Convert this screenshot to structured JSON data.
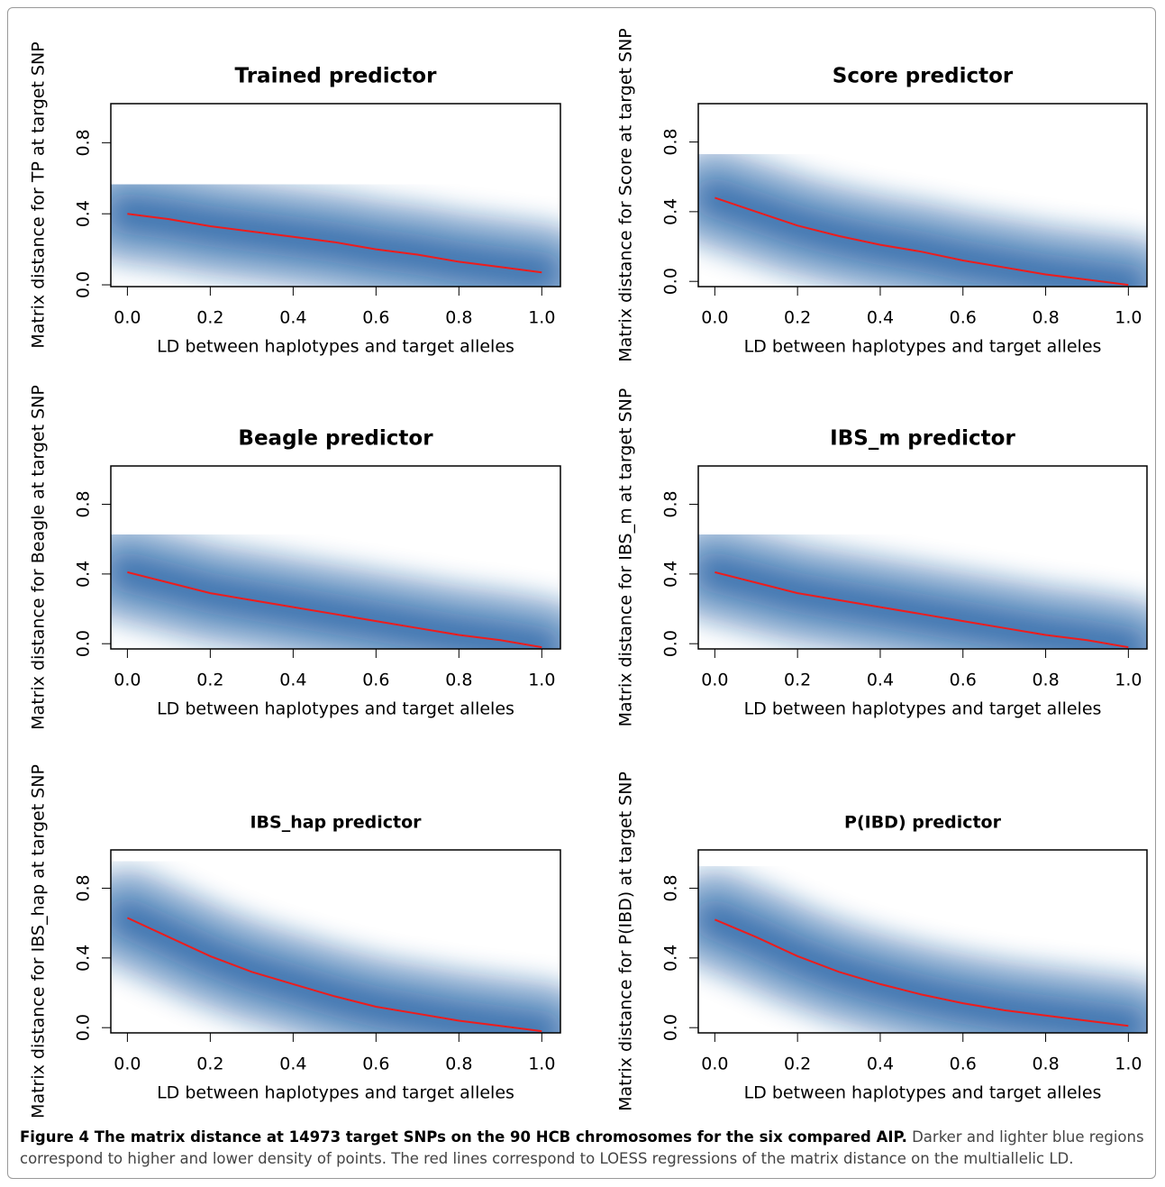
{
  "chart_data": [
    {
      "type": "line",
      "title": "Trained predictor",
      "xlabel": "LD between haplotypes and target alleles",
      "ylabel": "Matrix distance for TP at target SNP",
      "x": [
        0,
        0.1,
        0.2,
        0.3,
        0.4,
        0.5,
        0.6,
        0.7,
        0.8,
        0.9,
        1
      ],
      "values": [
        0.4,
        0.37,
        0.33,
        0.3,
        0.27,
        0.24,
        0.2,
        0.17,
        0.13,
        0.1,
        0.07
      ],
      "color": "#ee1c1c",
      "density_color": "#08519c",
      "xlim": [
        -0.04,
        1.045
      ],
      "ylim": [
        -0.01,
        1.02
      ],
      "xticks": [
        {
          "value": 0,
          "label": "0.0"
        },
        0.2,
        0.4,
        0.6,
        0.8,
        {
          "value": 1,
          "label": "1.0"
        }
      ],
      "yticks": [
        {
          "value": 0,
          "label": "0.0"
        },
        0.4,
        0.8
      ]
    },
    {
      "type": "line",
      "title": "Score predictor",
      "xlabel": "LD between haplotypes and target alleles",
      "ylabel": "Matrix distance for Score at target SNP",
      "x": [
        0,
        0.1,
        0.2,
        0.3,
        0.4,
        0.5,
        0.6,
        0.7,
        0.8,
        0.9,
        1
      ],
      "values": [
        0.48,
        0.4,
        0.32,
        0.26,
        0.21,
        0.17,
        0.12,
        0.08,
        0.04,
        0.01,
        -0.02
      ],
      "color": "#ee1c1c",
      "density_color": "#08519c",
      "xlim": [
        -0.04,
        1.045
      ],
      "ylim": [
        -0.03,
        1.02
      ],
      "xticks": [
        {
          "value": 0,
          "label": "0.0"
        },
        0.2,
        0.4,
        0.6,
        0.8,
        {
          "value": 1,
          "label": "1.0"
        }
      ],
      "yticks": [
        {
          "value": 0,
          "label": "0.0"
        },
        0.4,
        0.8
      ]
    },
    {
      "type": "line",
      "title": "Beagle predictor",
      "xlabel": "LD between haplotypes and target alleles",
      "ylabel": "Matrix distance for Beagle at target SNP",
      "x": [
        0,
        0.1,
        0.2,
        0.3,
        0.4,
        0.5,
        0.6,
        0.7,
        0.8,
        0.9,
        1
      ],
      "values": [
        0.41,
        0.35,
        0.29,
        0.25,
        0.21,
        0.17,
        0.13,
        0.09,
        0.05,
        0.02,
        -0.02
      ],
      "color": "#ee1c1c",
      "density_color": "#08519c",
      "xlim": [
        -0.04,
        1.045
      ],
      "ylim": [
        -0.03,
        1.02
      ],
      "xticks": [
        {
          "value": 0,
          "label": "0.0"
        },
        0.2,
        0.4,
        0.6,
        0.8,
        {
          "value": 1,
          "label": "1.0"
        }
      ],
      "yticks": [
        {
          "value": 0,
          "label": "0.0"
        },
        0.4,
        0.8
      ]
    },
    {
      "type": "line",
      "title": "IBS_m predictor",
      "xlabel": "LD between haplotypes and target alleles",
      "ylabel": "Matrix distance for IBS_m at target SNP",
      "x": [
        0,
        0.1,
        0.2,
        0.3,
        0.4,
        0.5,
        0.6,
        0.7,
        0.8,
        0.9,
        1
      ],
      "values": [
        0.41,
        0.35,
        0.29,
        0.25,
        0.21,
        0.17,
        0.13,
        0.09,
        0.05,
        0.02,
        -0.02
      ],
      "color": "#ee1c1c",
      "density_color": "#08519c",
      "xlim": [
        -0.04,
        1.045
      ],
      "ylim": [
        -0.03,
        1.02
      ],
      "xticks": [
        {
          "value": 0,
          "label": "0.0"
        },
        0.2,
        0.4,
        0.6,
        0.8,
        {
          "value": 1,
          "label": "1.0"
        }
      ],
      "yticks": [
        {
          "value": 0,
          "label": "0.0"
        },
        0.4,
        0.8
      ]
    },
    {
      "type": "line",
      "title": "IBS_hap predictor",
      "xlabel": "LD between haplotypes and target alleles",
      "ylabel": "Matrix distance for IBS_hap at target SNP",
      "x": [
        0,
        0.1,
        0.2,
        0.3,
        0.4,
        0.5,
        0.6,
        0.7,
        0.8,
        0.9,
        1
      ],
      "values": [
        0.63,
        0.52,
        0.41,
        0.32,
        0.25,
        0.18,
        0.12,
        0.08,
        0.04,
        0.01,
        -0.02
      ],
      "color": "#ee1c1c",
      "density_color": "#08519c",
      "xlim": [
        -0.04,
        1.045
      ],
      "ylim": [
        -0.03,
        1.02
      ],
      "xticks": [
        {
          "value": 0,
          "label": "0.0"
        },
        0.2,
        0.4,
        0.6,
        0.8,
        {
          "value": 1,
          "label": "1.0"
        }
      ],
      "yticks": [
        {
          "value": 0,
          "label": "0.0"
        },
        0.4,
        0.8
      ]
    },
    {
      "type": "line",
      "title": "P(IBD) predictor",
      "xlabel": "LD between haplotypes and target alleles",
      "ylabel": "Matrix distance for P(IBD) at target SNP",
      "x": [
        0,
        0.1,
        0.2,
        0.3,
        0.4,
        0.5,
        0.6,
        0.7,
        0.8,
        0.9,
        1
      ],
      "values": [
        0.62,
        0.52,
        0.41,
        0.32,
        0.25,
        0.19,
        0.14,
        0.1,
        0.07,
        0.04,
        0.01
      ],
      "color": "#ee1c1c",
      "density_color": "#08519c",
      "xlim": [
        -0.04,
        1.045
      ],
      "ylim": [
        -0.03,
        1.02
      ],
      "xticks": [
        {
          "value": 0,
          "label": "0.0"
        },
        0.2,
        0.4,
        0.6,
        0.8,
        {
          "value": 1,
          "label": "1.0"
        }
      ],
      "yticks": [
        {
          "value": 0,
          "label": "0.0"
        },
        0.4,
        0.8
      ]
    }
  ],
  "caption": {
    "label": "Figure 4 The matrix distance at 14973 target SNPs on the 90 HCB chromosomes for the six compared AIP.",
    "text": "Darker and lighter blue regions correspond to higher and lower density of points. The red lines correspond to LOESS regressions of the matrix distance on the multiallelic LD."
  }
}
